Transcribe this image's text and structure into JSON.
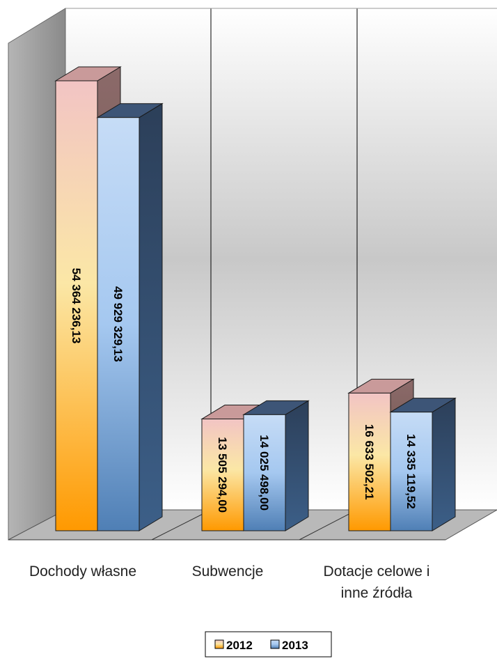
{
  "chart_data": {
    "type": "bar",
    "categories": [
      [
        "Dochody własne"
      ],
      [
        "Subwencje"
      ],
      [
        "Dotacje celowe i",
        "inne źródła"
      ]
    ],
    "series": [
      {
        "name": "2012",
        "values": [
          54364236.13,
          13505294.0,
          16633502.21
        ],
        "labels": [
          "54 364 236,13",
          "13 505 294,00",
          "16 633 502,21"
        ],
        "color_light": "#f2c4c4",
        "color_mid": "#fbe7a6",
        "color_dark": "#ff9900",
        "color_top": "#c99a9a",
        "color_side": "#8c6a6a"
      },
      {
        "name": "2013",
        "values": [
          49929329.13,
          14025498.0,
          14335119.52
        ],
        "labels": [
          "49 929 329,13",
          "14 025 498,00",
          "14 335 119,52"
        ],
        "color_light": "#c6dcf6",
        "color_mid": "#a5c8f0",
        "color_dark": "#4f7fb5",
        "color_top": "#3d5577",
        "color_side": "#2c3f59"
      }
    ],
    "chart_style": "3d-clustered-column",
    "legend": {
      "placement": "bottom",
      "entries": [
        "2012",
        "2013"
      ]
    },
    "grid": false
  }
}
